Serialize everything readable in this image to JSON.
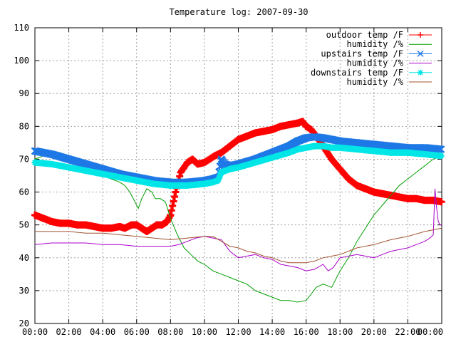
{
  "chart_data": {
    "type": "line",
    "title": "Temperature log: 2007-09-30",
    "xlabel": "",
    "ylabel": "",
    "xlim": [
      0,
      24
    ],
    "ylim": [
      20,
      110
    ],
    "grid": true,
    "legend_position": "top-right",
    "x_ticks": [
      "00:00",
      "02:00",
      "04:00",
      "06:00",
      "08:00",
      "10:00",
      "12:00",
      "14:00",
      "16:00",
      "18:00",
      "20:00",
      "22:00",
      "00:00"
    ],
    "y_ticks": [
      "20",
      "30",
      "40",
      "50",
      "60",
      "70",
      "80",
      "90",
      "100",
      "110"
    ],
    "series": [
      {
        "name": "outdoor temp /F",
        "color": "#ff0000",
        "marker": "plus",
        "x": [
          0,
          0.5,
          1,
          1.5,
          2,
          2.5,
          3,
          3.5,
          4,
          4.5,
          5,
          5.3,
          5.7,
          6,
          6.3,
          6.6,
          6.9,
          7.2,
          7.5,
          7.8,
          8,
          8.3,
          8.6,
          9,
          9.3,
          9.6,
          10,
          10.3,
          10.6,
          11,
          11.5,
          12,
          12.5,
          13,
          13.5,
          14,
          14.5,
          15,
          15.5,
          15.8,
          16,
          16.3,
          16.6,
          17,
          17.5,
          18,
          18.5,
          19,
          19.5,
          20,
          20.5,
          21,
          21.5,
          22,
          22.5,
          23,
          23.5,
          24
        ],
        "y": [
          53,
          52,
          51,
          50.5,
          50.5,
          50,
          50,
          49.5,
          49,
          49,
          49.5,
          49,
          50,
          50,
          49,
          48,
          49,
          50,
          50,
          51,
          53,
          60,
          66,
          69,
          70,
          68.5,
          69,
          70,
          71,
          72,
          74,
          76,
          77,
          78,
          78.5,
          79,
          80,
          80.5,
          81,
          81.5,
          80,
          79,
          77,
          74,
          70,
          67,
          64,
          62,
          61,
          60,
          59.5,
          59,
          58.5,
          58,
          58,
          57.5,
          57.5,
          57
        ]
      },
      {
        "name": "humidity /%",
        "color": "#00a000",
        "marker": "none",
        "x": [
          0,
          0.5,
          1,
          1.5,
          2,
          2.5,
          3,
          3.5,
          4,
          4.5,
          5,
          5.3,
          5.6,
          5.9,
          6.1,
          6.3,
          6.6,
          6.9,
          7.1,
          7.4,
          7.7,
          8,
          8.4,
          8.8,
          9.2,
          9.6,
          10,
          10.5,
          11,
          11.5,
          12,
          12.5,
          13,
          13.5,
          14,
          14.5,
          15,
          15.5,
          16,
          16.3,
          16.6,
          17,
          17.5,
          18,
          18.5,
          19,
          19.5,
          20,
          20.5,
          21,
          21.5,
          22,
          22.5,
          23,
          23.5,
          24
        ],
        "y": [
          70,
          71,
          72,
          72,
          70,
          69,
          67,
          66,
          65,
          64,
          63,
          62,
          60,
          57,
          55,
          58,
          61,
          60,
          58,
          58,
          57,
          52,
          47,
          43,
          41,
          39,
          38,
          36,
          35,
          34,
          33,
          32,
          30,
          29,
          28,
          27,
          27,
          26.5,
          27,
          29,
          31,
          32,
          31,
          36,
          40,
          45,
          49,
          53,
          56,
          59,
          62,
          64,
          66,
          68,
          70,
          71
        ]
      },
      {
        "name": "upstairs temp /F",
        "color": "#1e78e6",
        "marker": "x",
        "x": [
          0,
          1,
          2,
          3,
          4,
          5,
          6,
          7,
          8,
          9,
          10,
          10.5,
          10.8,
          11,
          11.2,
          11.5,
          12,
          13,
          14,
          15,
          15.5,
          16,
          16.5,
          17,
          17.5,
          18,
          19,
          20,
          21,
          22,
          23,
          24
        ],
        "y": [
          72.5,
          71.5,
          70,
          68.5,
          67,
          65.5,
          64.5,
          63.5,
          63,
          63,
          63.5,
          64,
          64.5,
          70,
          68.5,
          68,
          68.5,
          70,
          72,
          74,
          75.5,
          76.5,
          76.8,
          76.5,
          76,
          75.5,
          75,
          74.5,
          74,
          73.5,
          73.5,
          73
        ]
      },
      {
        "name": "humidity /%",
        "color": "#aa00cc",
        "marker": "none",
        "x": [
          0,
          1,
          2,
          3,
          4,
          5,
          6,
          7,
          8,
          8.5,
          9,
          9.5,
          10,
          10.5,
          11,
          11.5,
          12,
          12.5,
          13,
          13.5,
          14,
          14.5,
          15,
          15.5,
          16,
          16.5,
          17,
          17.3,
          17.6,
          18,
          18.5,
          19,
          19.5,
          20,
          20.5,
          21,
          21.5,
          22,
          22.5,
          23,
          23.3,
          23.5,
          23.6,
          23.7,
          23.8,
          23.9,
          24
        ],
        "y": [
          44,
          44.5,
          44.5,
          44.5,
          44,
          44,
          43.5,
          43.5,
          43.5,
          44,
          45,
          46,
          46.5,
          46,
          45.5,
          42,
          40,
          40.5,
          41,
          40,
          39.5,
          38,
          37.5,
          37,
          36,
          36.5,
          38,
          36,
          37,
          40,
          40.5,
          41,
          40.5,
          40,
          41,
          42,
          42.5,
          43,
          44,
          45,
          46,
          47,
          61,
          55,
          51,
          50,
          50
        ]
      },
      {
        "name": "downstairs temp /F",
        "color": "#00e6e6",
        "marker": "star",
        "x": [
          0,
          1,
          2,
          3,
          4,
          5,
          6,
          7,
          8,
          9,
          10,
          10.5,
          10.8,
          11,
          11.5,
          12,
          13,
          14,
          15,
          15.5,
          16,
          16.5,
          17,
          17.5,
          18,
          19,
          20,
          21,
          22,
          23,
          24
        ],
        "y": [
          69,
          68.5,
          67.5,
          66.5,
          65.5,
          64.5,
          63.5,
          62.5,
          62,
          62,
          62.5,
          63,
          63.5,
          66,
          67,
          67.5,
          69,
          70.5,
          72,
          73,
          73.5,
          74,
          74,
          73.5,
          73.5,
          73,
          72.5,
          72,
          72,
          71.5,
          71
        ]
      },
      {
        "name": "humidity /%",
        "color": "#a0522d",
        "marker": "none",
        "x": [
          0,
          1,
          2,
          3,
          4,
          5,
          6,
          7,
          8,
          9,
          10,
          10.5,
          11,
          11.5,
          12,
          12.5,
          13,
          13.5,
          14,
          14.5,
          15,
          15.5,
          16,
          16.5,
          17,
          17.5,
          18,
          18.5,
          19,
          20,
          21,
          22,
          23,
          23.5,
          24
        ],
        "y": [
          48,
          48,
          48,
          47.5,
          47.5,
          47,
          46.5,
          46,
          45.5,
          46,
          46.5,
          46.5,
          45,
          43.5,
          43,
          42,
          41.5,
          40.5,
          40,
          39,
          38.5,
          38.5,
          38.5,
          39,
          40,
          40.5,
          41,
          42,
          43,
          44,
          45.5,
          46.5,
          48,
          48.5,
          49
        ]
      }
    ]
  }
}
